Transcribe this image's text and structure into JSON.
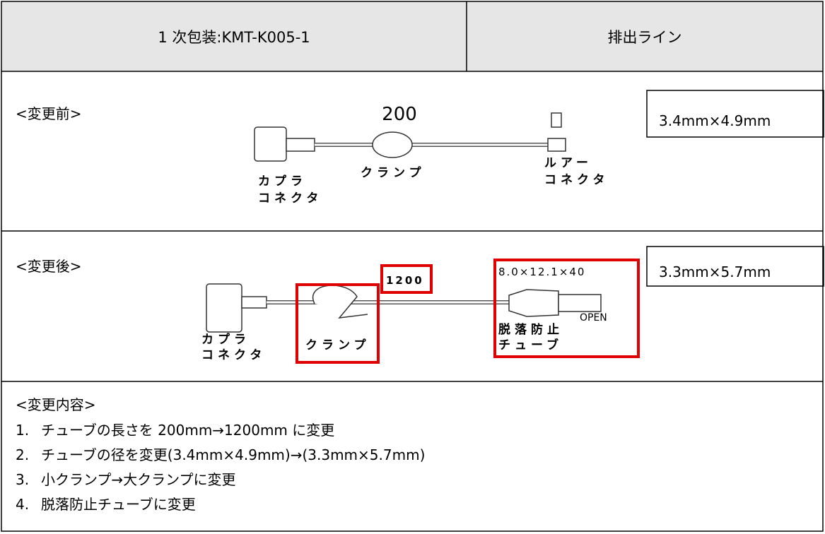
{
  "header": {
    "left": "1 次包装:KMT-K005-1",
    "right": "排出ライン"
  },
  "before": {
    "label": "<変更前>",
    "size": "3.4mm×4.9mm",
    "length": "200",
    "coupler_label": [
      "カプラ",
      "コネクタ"
    ],
    "clamp_label": "クランプ",
    "luer_label": [
      "ルアー",
      "コネクタ"
    ]
  },
  "after": {
    "label": "<変更後>",
    "size": "3.3mm×5.7mm",
    "length": "1200",
    "tube_spec": "8.0×12.1×40",
    "open_label": "OPEN",
    "coupler_label": [
      "カプラ",
      "コネクタ"
    ],
    "clamp_label": "クランプ",
    "tube_label": [
      "脱落防止",
      "チューブ"
    ]
  },
  "changes": {
    "title": "<変更内容>",
    "items": [
      {
        "number": "1.",
        "text": "チューブの長さを 200mm→1200mm に変更"
      },
      {
        "number": "2.",
        "text": "チューブの径を変更(3.4mm×4.9mm)→(3.3mm×5.7mm)"
      },
      {
        "number": "3.",
        "text": "小クランプ→大クランプに変更"
      },
      {
        "number": "4.",
        "text": "脱落防止チューブに変更"
      }
    ]
  }
}
